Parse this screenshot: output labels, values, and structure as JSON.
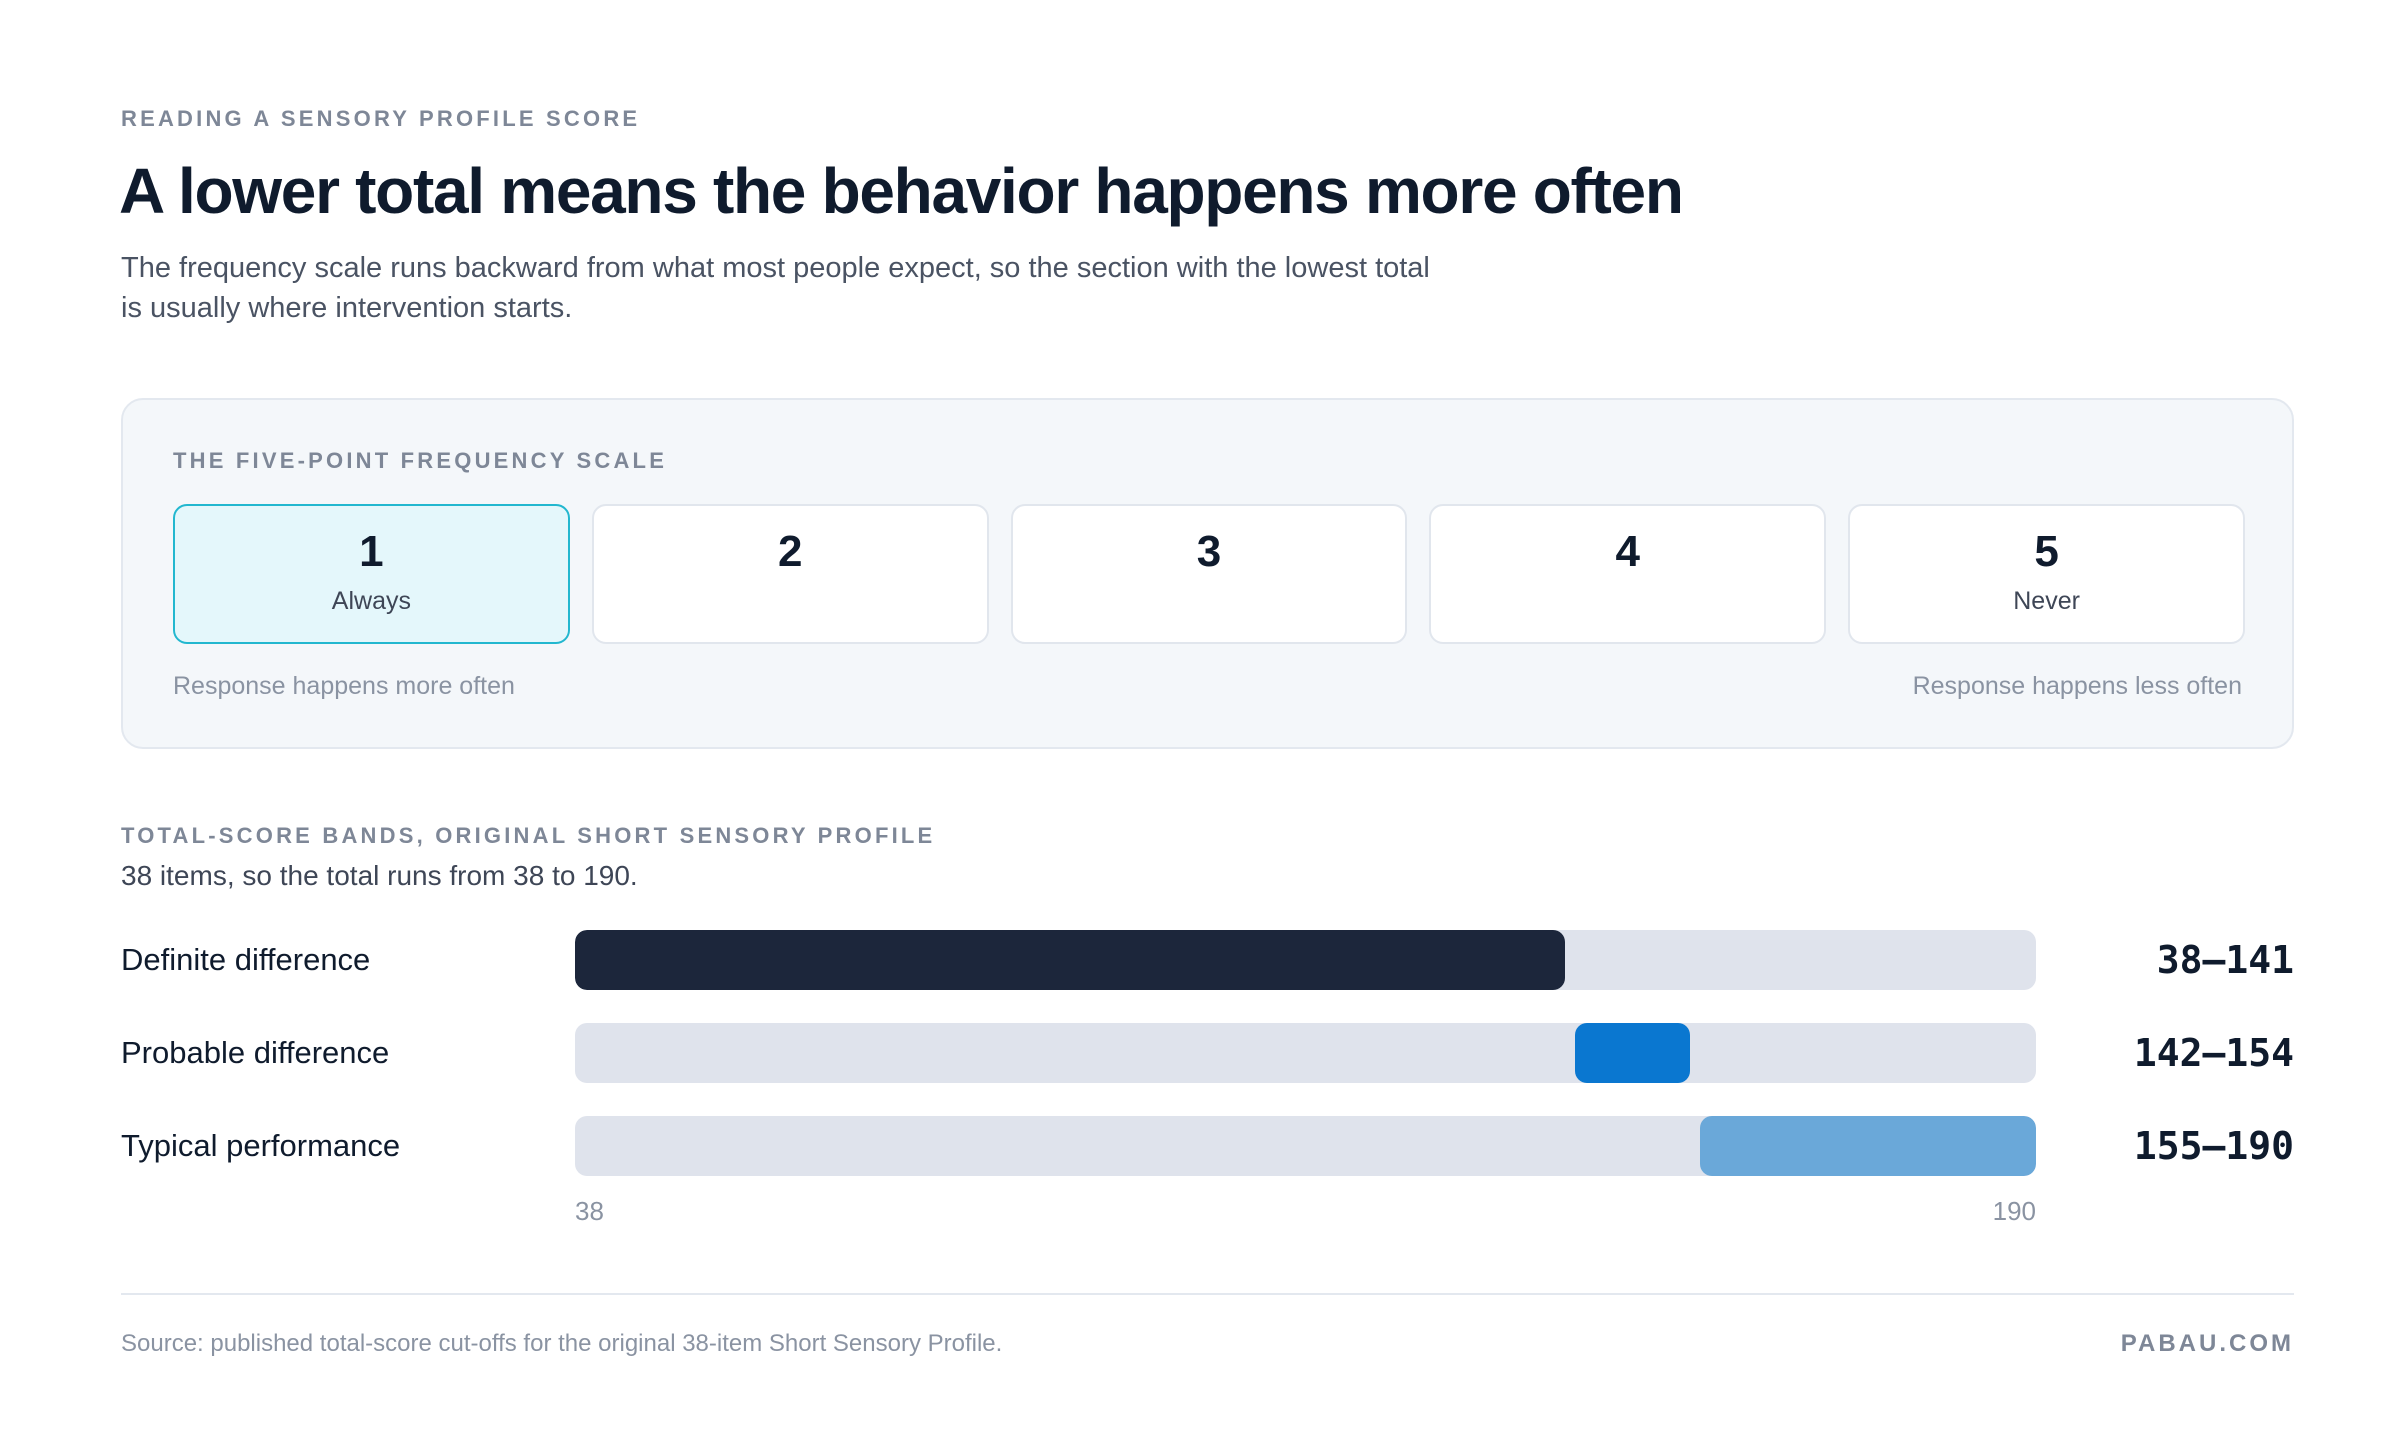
{
  "header": {
    "eyebrow": "READING A SENSORY PROFILE SCORE",
    "title": "A lower total means the behavior happens more often",
    "subtitle": "The frequency scale runs backward from what most people expect, so the section with the lowest total is usually where intervention starts."
  },
  "scale": {
    "label": "THE FIVE-POINT FREQUENCY SCALE",
    "points": [
      {
        "number": "1",
        "word": "Always",
        "highlighted": true
      },
      {
        "number": "2",
        "word": "",
        "highlighted": false
      },
      {
        "number": "3",
        "word": "",
        "highlighted": false
      },
      {
        "number": "4",
        "word": "",
        "highlighted": false
      },
      {
        "number": "5",
        "word": "Never",
        "highlighted": false
      }
    ],
    "left_note": "Response happens more often",
    "right_note": "Response happens less often",
    "highlight_color": "#22b7cf"
  },
  "bands": {
    "label": "TOTAL-SCORE BANDS, ORIGINAL SHORT SENSORY PROFILE",
    "note": "38 items, so the total runs from 38 to 190."
  },
  "chart_data": {
    "type": "bar",
    "orientation": "horizontal-range",
    "title": "TOTAL-SCORE BANDS, ORIGINAL SHORT SENSORY PROFILE",
    "xlim": [
      38,
      190
    ],
    "x_tick_labels": [
      "38",
      "190"
    ],
    "grid": false,
    "series": [
      {
        "category": "Definite difference",
        "start": 38,
        "end": 141,
        "range_label": "38—141",
        "color": "#1c263b"
      },
      {
        "category": "Probable difference",
        "start": 142,
        "end": 154,
        "range_label": "142—154",
        "color": "#0a77d0"
      },
      {
        "category": "Typical performance",
        "start": 155,
        "end": 190,
        "range_label": "155—190",
        "color": "#6aa8d9"
      }
    ]
  },
  "footer": {
    "source": "Source: published total-score cut-offs for the original 38-item Short Sensory Profile.",
    "brand": "PABAU.COM"
  }
}
